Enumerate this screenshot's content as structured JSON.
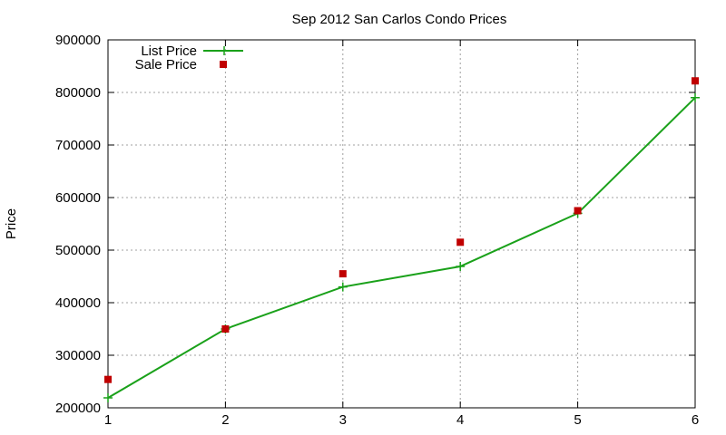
{
  "chart_data": {
    "type": "line",
    "title": "Sep 2012 San Carlos Condo Prices",
    "xlabel": "",
    "ylabel": "Price",
    "xlim": [
      1,
      6
    ],
    "ylim": [
      200000,
      900000
    ],
    "x_ticks": [
      "1",
      "2",
      "3",
      "4",
      "5",
      "6"
    ],
    "y_ticks": [
      "200000",
      "300000",
      "400000",
      "500000",
      "600000",
      "700000",
      "800000",
      "900000"
    ],
    "grid": true,
    "legend_position": "top-left",
    "series": [
      {
        "name": "List Price",
        "style": "lines+points",
        "color": "#1aa11a",
        "x": [
          1,
          2,
          3,
          4,
          5,
          6
        ],
        "y": [
          219000,
          350000,
          430000,
          469000,
          570000,
          790000
        ]
      },
      {
        "name": "Sale Price",
        "style": "points",
        "color": "#c00000",
        "x": [
          1,
          2,
          3,
          4,
          5,
          6
        ],
        "y": [
          254000,
          350000,
          455000,
          515000,
          575000,
          822000
        ]
      }
    ]
  }
}
